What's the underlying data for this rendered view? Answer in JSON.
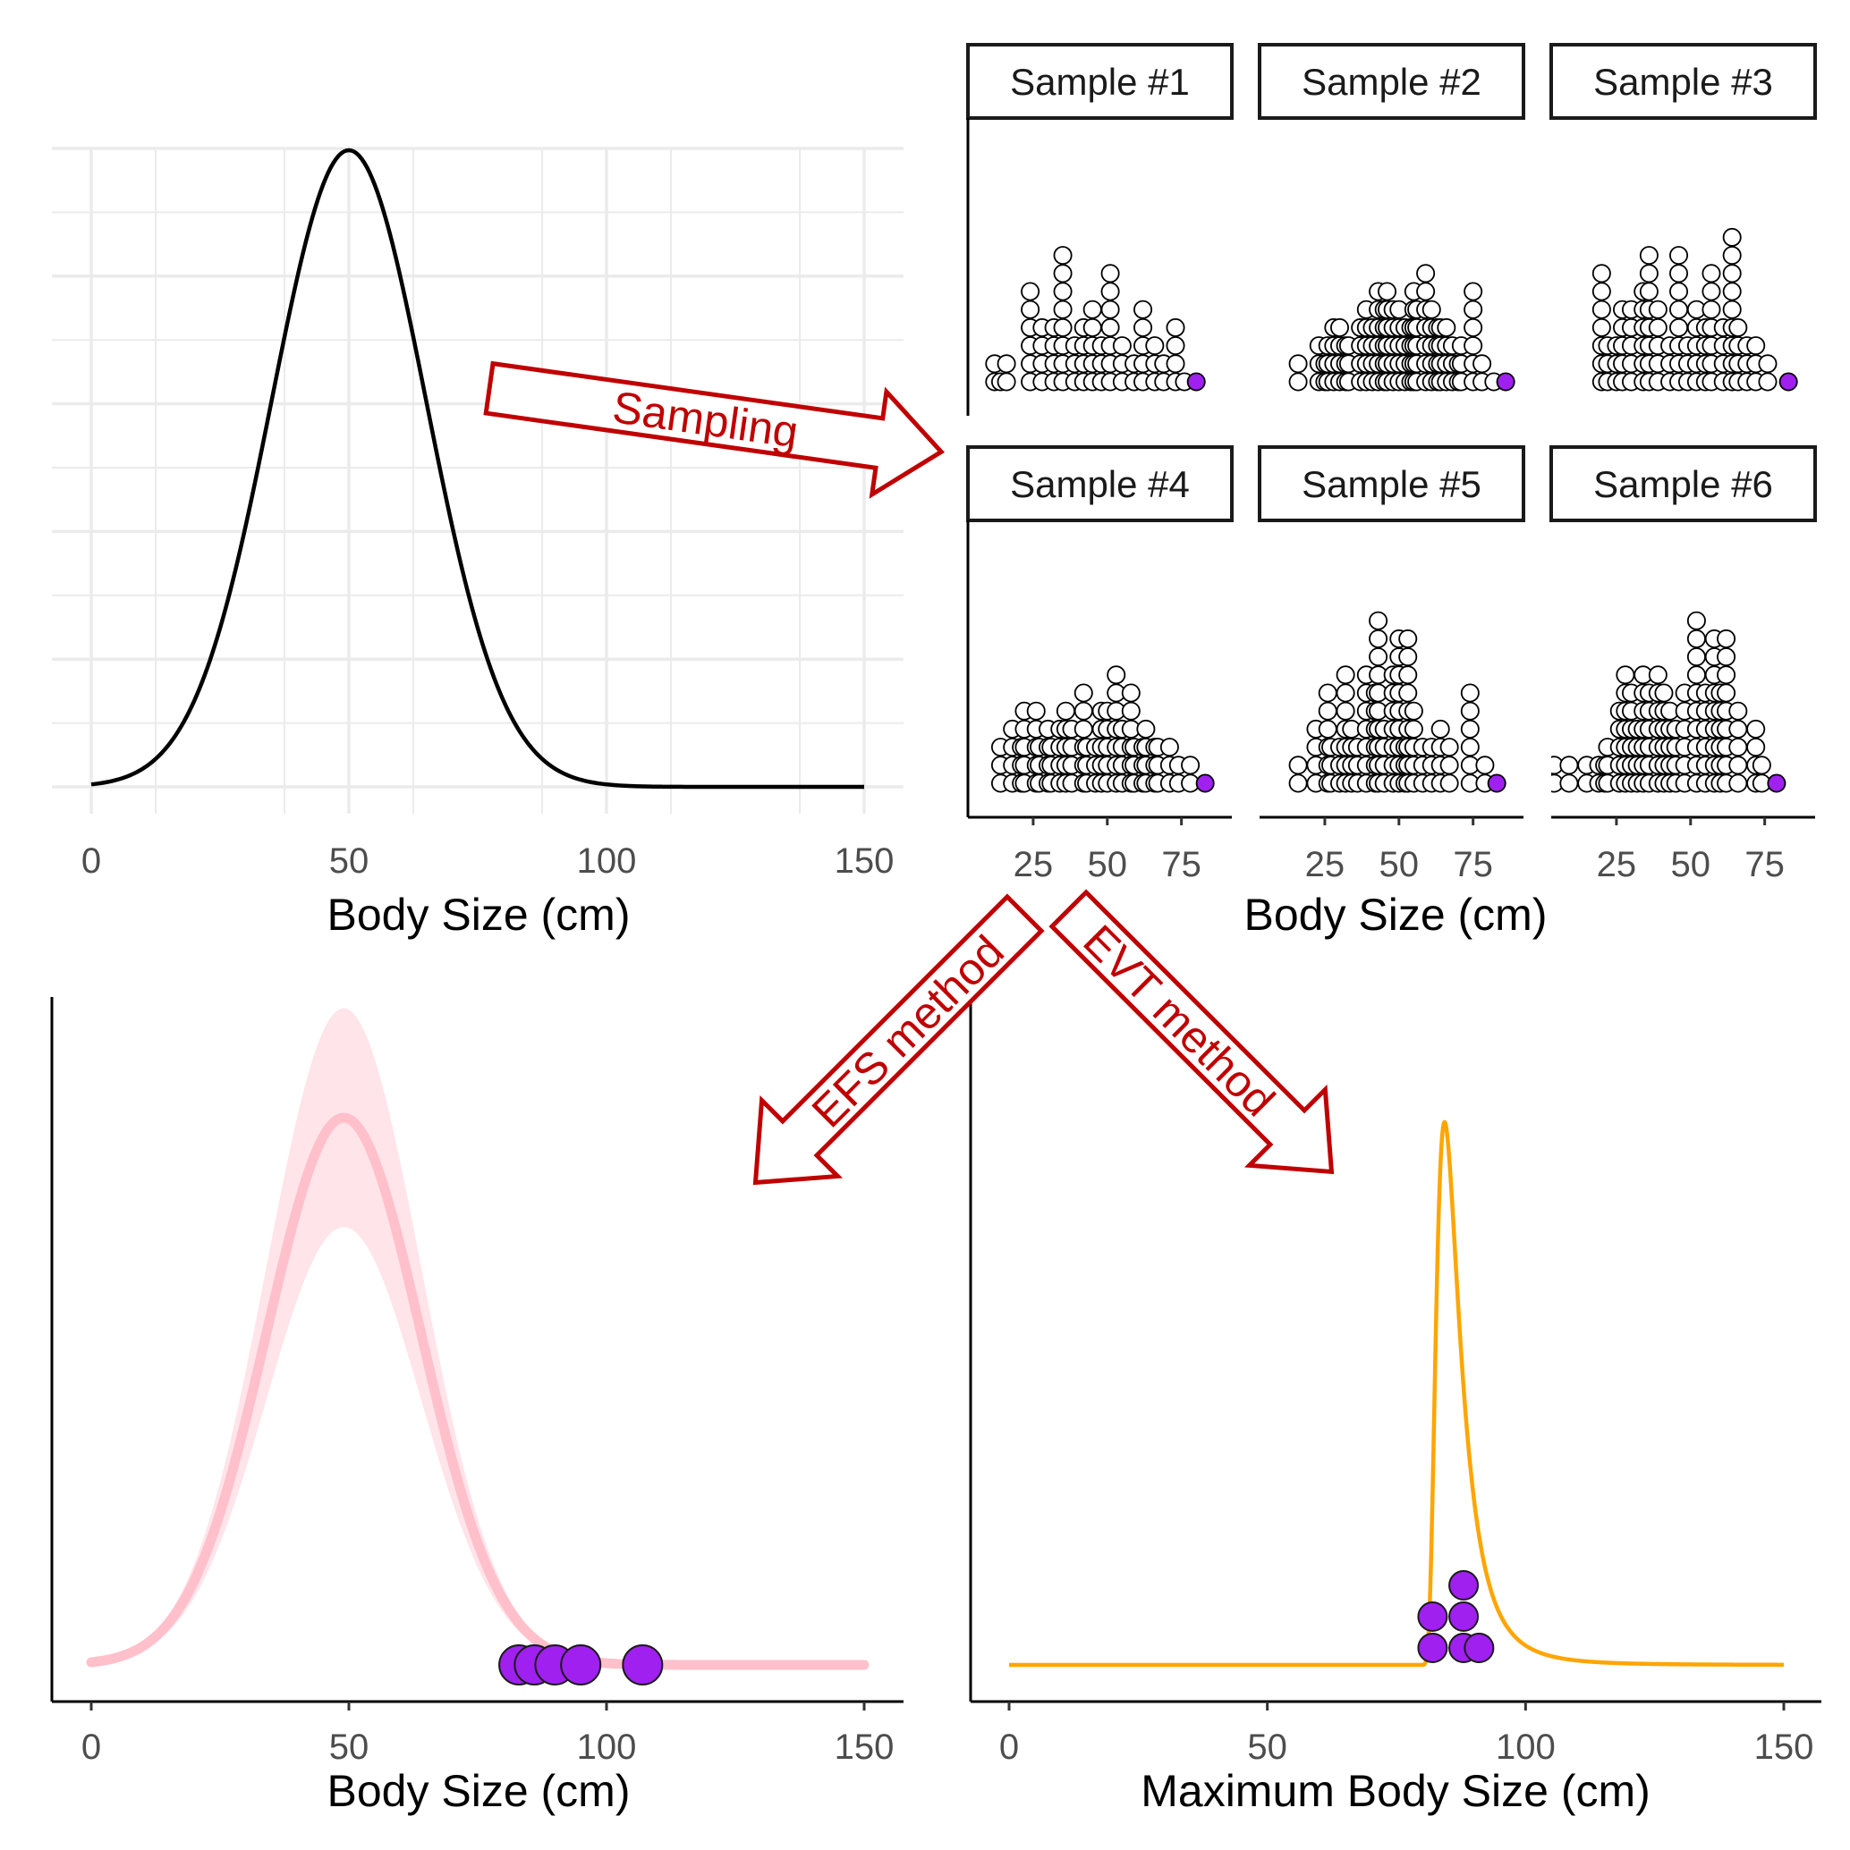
{
  "colors": {
    "arrow": "#c00000",
    "highlight_point": "#a020f0",
    "fit_band": "#ffe4ea",
    "fit_line": "#ffc0cb",
    "evt_line": "#ffa500",
    "grid": "#ebebeb"
  },
  "arrows": {
    "sampling": "Sampling",
    "efs": "EFS method",
    "evt": "EVT method"
  },
  "chart_data": [
    {
      "id": "population",
      "type": "line",
      "function": "normal density",
      "mean": 50,
      "sd": 15,
      "xlabel": "Body Size (cm)",
      "xlim": [
        0,
        150
      ],
      "xticks": [
        0,
        50,
        100,
        150
      ],
      "grid": true,
      "y_axis_shown": false
    },
    {
      "id": "samples",
      "type": "dotplot",
      "xlabel": "Body Size (cm)",
      "xticks": [
        25,
        50,
        75
      ],
      "xlim": [
        3,
        92
      ],
      "highlight": "sample maximum",
      "panels": [
        {
          "label": "Sample #1",
          "values": [
            12,
            12,
            14,
            16,
            16,
            24,
            24,
            24,
            24,
            24,
            24,
            28,
            28,
            28,
            28,
            32,
            32,
            32,
            32,
            35,
            35,
            35,
            35,
            35,
            35,
            35,
            35,
            39,
            39,
            39,
            42,
            42,
            42,
            42,
            45,
            45,
            45,
            45,
            45,
            48,
            48,
            48,
            51,
            51,
            51,
            51,
            51,
            51,
            51,
            55,
            55,
            55,
            59,
            59,
            62,
            62,
            62,
            62,
            62,
            66,
            66,
            66,
            69,
            69,
            73,
            73,
            73,
            73,
            76
          ],
          "max": 80
        },
        {
          "label": "Sample #2",
          "values": [
            16,
            16,
            23,
            23,
            23,
            25,
            25,
            26,
            26,
            26,
            28,
            28,
            28,
            28,
            30,
            30,
            30,
            30,
            32,
            32,
            32,
            33,
            33,
            33,
            37,
            37,
            37,
            37,
            39,
            39,
            39,
            39,
            39,
            41,
            41,
            41,
            41,
            43,
            43,
            43,
            43,
            43,
            43,
            45,
            45,
            45,
            45,
            45,
            46,
            46,
            46,
            46,
            46,
            46,
            48,
            48,
            48,
            48,
            48,
            50,
            50,
            50,
            50,
            50,
            52,
            52,
            52,
            52,
            54,
            54,
            54,
            54,
            55,
            55,
            55,
            55,
            55,
            55,
            56,
            56,
            56,
            56,
            56,
            59,
            59,
            59,
            59,
            59,
            59,
            59,
            61,
            61,
            61,
            61,
            61,
            63,
            63,
            63,
            63,
            64,
            64,
            64,
            64,
            66,
            66,
            66,
            66,
            68,
            68,
            68,
            70,
            70,
            71,
            71,
            71,
            75,
            75,
            75,
            75,
            75,
            75,
            78,
            78,
            82
          ],
          "max": 86
        },
        {
          "label": "Sample #3",
          "values": [
            20,
            20,
            20,
            20,
            20,
            20,
            20,
            22,
            22,
            22,
            25,
            25,
            25,
            27,
            27,
            27,
            27,
            27,
            30,
            30,
            30,
            30,
            30,
            34,
            34,
            34,
            34,
            34,
            34,
            36,
            36,
            36,
            36,
            36,
            36,
            36,
            36,
            39,
            39,
            39,
            39,
            39,
            43,
            43,
            43,
            46,
            46,
            46,
            46,
            46,
            46,
            46,
            46,
            49,
            49,
            49,
            52,
            52,
            52,
            52,
            52,
            55,
            55,
            55,
            55,
            57,
            57,
            57,
            57,
            57,
            57,
            57,
            61,
            61,
            61,
            61,
            64,
            64,
            64,
            64,
            64,
            64,
            64,
            64,
            64,
            66,
            66,
            66,
            66,
            69,
            69,
            69,
            72,
            72,
            72,
            76,
            76
          ],
          "max": 83
        },
        {
          "label": "Sample #4",
          "values": [
            14,
            14,
            14,
            18,
            18,
            18,
            18,
            21,
            21,
            21,
            22,
            22,
            22,
            22,
            22,
            26,
            26,
            26,
            26,
            26,
            27,
            27,
            27,
            30,
            30,
            30,
            30,
            31,
            31,
            31,
            34,
            34,
            34,
            34,
            36,
            36,
            36,
            36,
            36,
            38,
            38,
            38,
            38,
            42,
            42,
            42,
            42,
            42,
            42,
            43,
            43,
            43,
            46,
            46,
            46,
            48,
            48,
            48,
            48,
            48,
            50,
            50,
            50,
            50,
            50,
            53,
            53,
            53,
            53,
            53,
            53,
            53,
            55,
            55,
            55,
            55,
            58,
            58,
            58,
            58,
            58,
            58,
            59,
            59,
            59,
            62,
            62,
            62,
            63,
            63,
            63,
            63,
            66,
            66,
            66,
            67,
            67,
            67,
            71,
            71,
            71,
            74,
            74,
            78,
            78
          ],
          "max": 83
        },
        {
          "label": "Sample #5",
          "values": [
            16,
            16,
            22,
            22,
            22,
            22,
            26,
            26,
            26,
            26,
            26,
            26,
            27,
            27,
            27,
            30,
            30,
            30,
            32,
            32,
            32,
            32,
            32,
            32,
            32,
            34,
            34,
            34,
            34,
            36,
            36,
            36,
            39,
            39,
            39,
            39,
            39,
            39,
            39,
            42,
            42,
            42,
            42,
            42,
            42,
            43,
            43,
            43,
            43,
            43,
            43,
            43,
            43,
            43,
            43,
            45,
            45,
            45,
            45,
            48,
            48,
            48,
            48,
            48,
            48,
            48,
            50,
            50,
            50,
            50,
            50,
            50,
            50,
            50,
            50,
            52,
            52,
            52,
            53,
            53,
            53,
            53,
            53,
            53,
            53,
            53,
            53,
            55,
            55,
            55,
            55,
            55,
            58,
            58,
            58,
            61,
            61,
            61,
            64,
            64,
            64,
            64,
            67,
            67,
            67,
            74,
            74,
            74,
            74,
            74,
            74,
            79,
            79
          ],
          "max": 83
        },
        {
          "label": "Sample #6",
          "values": [
            4,
            4,
            9,
            9,
            15,
            15,
            19,
            19,
            21,
            21,
            22,
            22,
            22,
            26,
            26,
            26,
            26,
            26,
            28,
            28,
            28,
            28,
            28,
            28,
            28,
            30,
            30,
            30,
            30,
            30,
            30,
            32,
            32,
            32,
            32,
            34,
            34,
            34,
            34,
            34,
            34,
            34,
            36,
            36,
            36,
            36,
            36,
            36,
            39,
            39,
            39,
            39,
            39,
            39,
            39,
            41,
            41,
            41,
            41,
            41,
            41,
            43,
            43,
            43,
            43,
            43,
            45,
            45,
            45,
            45,
            48,
            48,
            48,
            48,
            48,
            48,
            52,
            52,
            52,
            52,
            52,
            52,
            52,
            52,
            52,
            52,
            55,
            55,
            55,
            55,
            55,
            55,
            58,
            58,
            58,
            58,
            58,
            58,
            58,
            58,
            58,
            60,
            60,
            60,
            60,
            60,
            60,
            62,
            62,
            62,
            62,
            62,
            62,
            62,
            62,
            62,
            66,
            66,
            66,
            66,
            66,
            72,
            72,
            72,
            72,
            74,
            74
          ],
          "max": 79
        }
      ]
    },
    {
      "id": "efs",
      "type": "line",
      "function": "fitted normal density with uncertainty band",
      "mean": 49,
      "sd": 15,
      "band_high": 1.2,
      "band_low": 0.8,
      "xlabel": "Body Size (cm)",
      "xlim": [
        0,
        150
      ],
      "xticks": [
        0,
        50,
        100,
        150
      ],
      "points": [
        83,
        86,
        90,
        95,
        107
      ]
    },
    {
      "id": "evt",
      "type": "line",
      "function": "extreme value density",
      "location": 85,
      "scale": 2.7,
      "shape": 0.3,
      "xlabel": "Maximum Body Size (cm)",
      "xlim": [
        0,
        150
      ],
      "xticks": [
        0,
        50,
        100,
        150
      ],
      "points": [
        82,
        82,
        88,
        88,
        88,
        91
      ]
    }
  ]
}
